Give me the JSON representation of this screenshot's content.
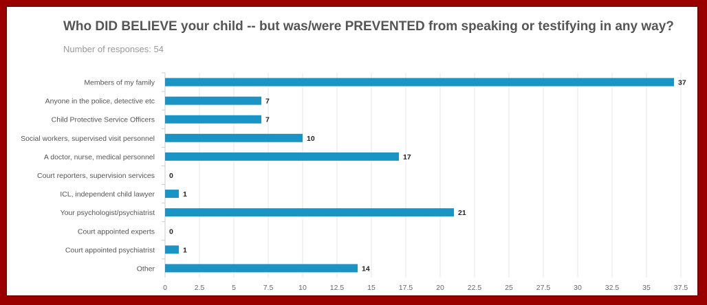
{
  "title": "Who DID BELIEVE your child -- but was/were PREVENTED from speaking or testifying in any way?",
  "subtitle": "Number of responses: 54",
  "colors": {
    "bar": "#1a93c5",
    "frame": "#9b0000",
    "grid": "#e6e6e6"
  },
  "chart_data": {
    "type": "bar",
    "orientation": "horizontal",
    "categories": [
      "Members of my family",
      "Anyone in the police, detective etc",
      "Child Protective Service Officers",
      "Social workers, supervised visit personnel",
      "A doctor, nurse, medical personnel",
      "Court reporters, supervision services",
      "ICL, independent child lawyer",
      "Your psychologist/psychiatrist",
      "Court appointed experts",
      "Court appointed psychiatrist",
      "Other"
    ],
    "values": [
      37,
      7,
      7,
      10,
      17,
      0,
      1,
      21,
      0,
      1,
      14
    ],
    "xticks": [
      "0",
      "2.5",
      "5",
      "7.5",
      "10",
      "12.5",
      "15",
      "17.5",
      "20",
      "22.5",
      "25",
      "27.5",
      "30",
      "32.5",
      "35",
      "37.5"
    ],
    "xlim": [
      0,
      37.5
    ],
    "grid": true,
    "data_labels": true
  }
}
